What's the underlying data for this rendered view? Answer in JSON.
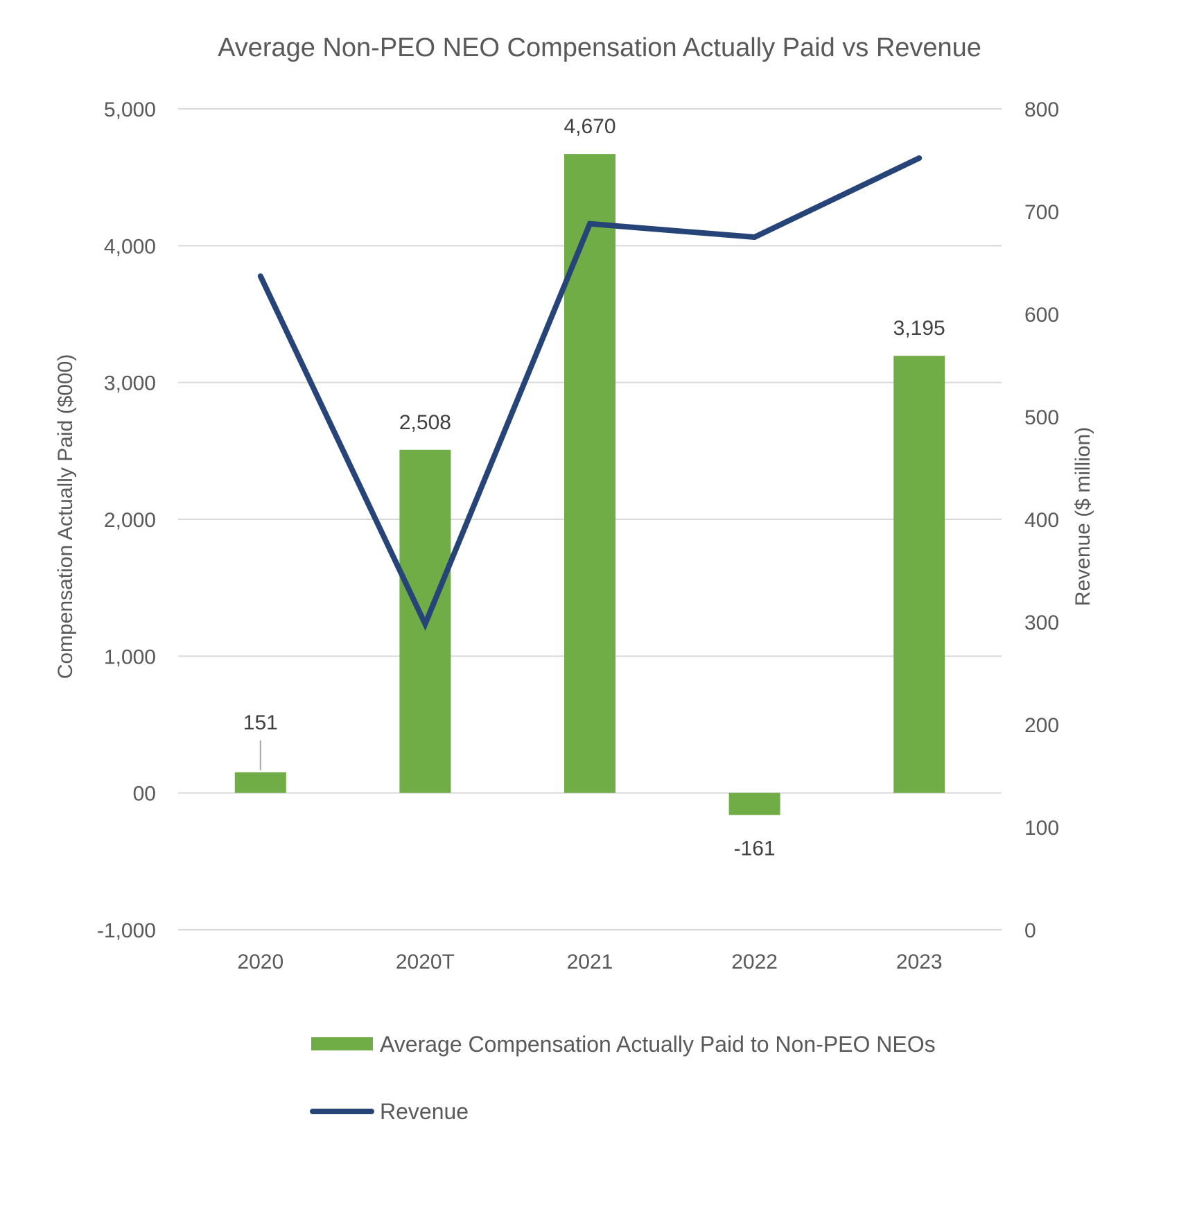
{
  "chart_data": {
    "type": "bar",
    "title": "Average Non-PEO NEO Compensation Actually Paid vs Revenue",
    "categories": [
      "2020",
      "2020T",
      "2021",
      "2022",
      "2023"
    ],
    "series": [
      {
        "name": "Average Compensation Actually Paid to Non-PEO NEOs",
        "type": "bar",
        "axis": "left",
        "values": [
          151,
          2508,
          4670,
          -161,
          3195
        ],
        "labels": [
          "151",
          "2,508",
          "4,670",
          "-161",
          "3,195"
        ],
        "color": "#70AD47"
      },
      {
        "name": "Revenue",
        "type": "line",
        "axis": "right",
        "values": [
          637,
          298,
          688,
          675,
          752
        ],
        "color": "#264478"
      }
    ],
    "y_left": {
      "label": "Compensation Actually Paid ($000)",
      "range": [
        -1000,
        5000
      ],
      "ticks": [
        -1000,
        0,
        1000,
        2000,
        3000,
        4000,
        5000
      ],
      "tick_labels": [
        "-1,000",
        "00",
        "1,000",
        "2,000",
        "3,000",
        "4,000",
        "5,000"
      ]
    },
    "y_right": {
      "label": "Revenue ($ million)",
      "range": [
        0,
        800
      ],
      "ticks": [
        0,
        100,
        200,
        300,
        400,
        500,
        600,
        700,
        800
      ],
      "tick_labels": [
        "0",
        "100",
        "200",
        "300",
        "400",
        "500",
        "600",
        "700",
        "800"
      ]
    },
    "grid": true,
    "legend_position": "bottom"
  }
}
